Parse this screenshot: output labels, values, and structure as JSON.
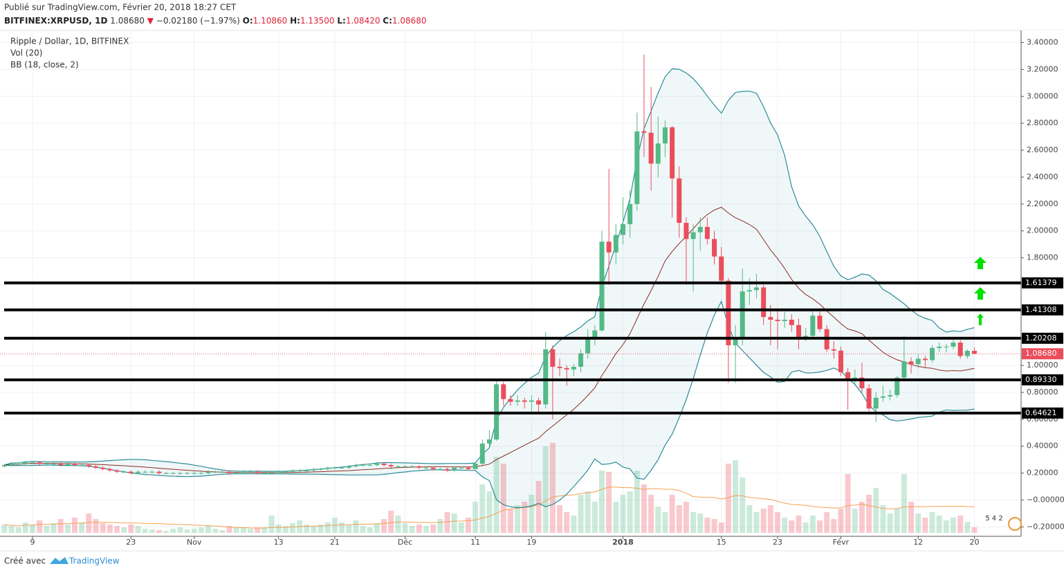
{
  "header": {
    "published": "Publié sur TradingView.com, Février 20, 2018 18:27 CET",
    "symbol": "BITFINEX:XRPUSD, 1D",
    "last": "1.08680",
    "arrow": "▼",
    "change": "−0.02180 (−1.97%)",
    "ohlc": [
      {
        "key": "O:",
        "value": "1.10860"
      },
      {
        "key": "H:",
        "value": "1.13500"
      },
      {
        "key": "L:",
        "value": "1.08420"
      },
      {
        "key": "C:",
        "value": "1.08680"
      }
    ],
    "badge": "5 4 2"
  },
  "footer": {
    "created": "Créé avec",
    "brand": "TradingView"
  },
  "chart_data": {
    "type": "candlestick",
    "legend": [
      "Ripple / Dollar, 1D, BITFINEX",
      "Vol (20)",
      "BB (18, close, 2)"
    ],
    "up_color": "#53b987",
    "down_color": "#eb4d5c",
    "band_color": "#2a8b97",
    "basis_color": "#8b2a22",
    "volume_ma_color": "#f5a050",
    "level_color": "#000000",
    "bb_length": 18,
    "bb_mult": 2,
    "volume_ma_length": 20,
    "x": [
      "2017-10-05",
      "2017-10-06",
      "2017-10-07",
      "2017-10-08",
      "2017-10-09",
      "2017-10-10",
      "2017-10-11",
      "2017-10-12",
      "2017-10-13",
      "2017-10-14",
      "2017-10-15",
      "2017-10-16",
      "2017-10-17",
      "2017-10-18",
      "2017-10-19",
      "2017-10-20",
      "2017-10-21",
      "2017-10-22",
      "2017-10-23",
      "2017-10-24",
      "2017-10-25",
      "2017-10-26",
      "2017-10-27",
      "2017-10-28",
      "2017-10-29",
      "2017-10-30",
      "2017-10-31",
      "2017-11-01",
      "2017-11-02",
      "2017-11-03",
      "2017-11-04",
      "2017-11-05",
      "2017-11-06",
      "2017-11-07",
      "2017-11-08",
      "2017-11-09",
      "2017-11-10",
      "2017-11-11",
      "2017-11-12",
      "2017-11-13",
      "2017-11-14",
      "2017-11-15",
      "2017-11-16",
      "2017-11-17",
      "2017-11-18",
      "2017-11-19",
      "2017-11-20",
      "2017-11-21",
      "2017-11-22",
      "2017-11-23",
      "2017-11-24",
      "2017-11-25",
      "2017-11-26",
      "2017-11-27",
      "2017-11-28",
      "2017-11-29",
      "2017-11-30",
      "2017-12-01",
      "2017-12-02",
      "2017-12-03",
      "2017-12-04",
      "2017-12-05",
      "2017-12-06",
      "2017-12-07",
      "2017-12-08",
      "2017-12-09",
      "2017-12-10",
      "2017-12-11",
      "2017-12-12",
      "2017-12-13",
      "2017-12-14",
      "2017-12-15",
      "2017-12-16",
      "2017-12-17",
      "2017-12-18",
      "2017-12-19",
      "2017-12-20",
      "2017-12-21",
      "2017-12-22",
      "2017-12-23",
      "2017-12-24",
      "2017-12-25",
      "2017-12-26",
      "2017-12-27",
      "2017-12-28",
      "2017-12-29",
      "2017-12-30",
      "2017-12-31",
      "2018-01-01",
      "2018-01-02",
      "2018-01-03",
      "2018-01-04",
      "2018-01-05",
      "2018-01-06",
      "2018-01-07",
      "2018-01-08",
      "2018-01-09",
      "2018-01-10",
      "2018-01-11",
      "2018-01-12",
      "2018-01-13",
      "2018-01-14",
      "2018-01-15",
      "2018-01-16",
      "2018-01-17",
      "2018-01-18",
      "2018-01-19",
      "2018-01-20",
      "2018-01-21",
      "2018-01-22",
      "2018-01-23",
      "2018-01-24",
      "2018-01-25",
      "2018-01-26",
      "2018-01-27",
      "2018-01-28",
      "2018-01-29",
      "2018-01-30",
      "2018-01-31",
      "2018-02-01",
      "2018-02-02",
      "2018-02-03",
      "2018-02-04",
      "2018-02-05",
      "2018-02-06",
      "2018-02-07",
      "2018-02-08",
      "2018-02-09",
      "2018-02-10",
      "2018-02-11",
      "2018-02-12",
      "2018-02-13",
      "2018-02-14",
      "2018-02-15",
      "2018-02-16",
      "2018-02-17",
      "2018-02-18",
      "2018-02-19",
      "2018-02-20"
    ],
    "open": [
      0.25,
      0.26,
      0.27,
      0.27,
      0.28,
      0.28,
      0.27,
      0.27,
      0.27,
      0.26,
      0.27,
      0.26,
      0.26,
      0.25,
      0.24,
      0.23,
      0.22,
      0.21,
      0.21,
      0.2,
      0.21,
      0.21,
      0.21,
      0.2,
      0.2,
      0.2,
      0.2,
      0.2,
      0.2,
      0.2,
      0.21,
      0.21,
      0.21,
      0.2,
      0.2,
      0.21,
      0.21,
      0.2,
      0.2,
      0.2,
      0.21,
      0.21,
      0.22,
      0.22,
      0.22,
      0.23,
      0.23,
      0.24,
      0.24,
      0.24,
      0.25,
      0.26,
      0.26,
      0.26,
      0.27,
      0.26,
      0.25,
      0.25,
      0.25,
      0.25,
      0.24,
      0.24,
      0.23,
      0.23,
      0.22,
      0.24,
      0.24,
      0.23,
      0.27,
      0.42,
      0.45,
      0.86,
      0.75,
      0.73,
      0.74,
      0.73,
      0.74,
      0.71,
      1.12,
      0.99,
      0.98,
      0.97,
      0.99,
      1.09,
      1.21,
      1.26,
      1.92,
      1.84,
      1.97,
      2.05,
      2.2,
      2.74,
      2.73,
      2.5,
      2.65,
      2.77,
      2.39,
      2.06,
      1.94,
      1.99,
      2.03,
      1.94,
      1.81,
      1.63,
      1.15,
      1.21,
      1.55,
      1.56,
      1.58,
      1.36,
      1.34,
      1.33,
      1.34,
      1.3,
      1.21,
      1.22,
      1.37,
      1.27,
      1.12,
      1.11,
      0.95,
      0.9,
      0.91,
      0.83,
      0.68,
      0.76,
      0.77,
      0.78,
      0.91,
      1.03,
      1.01,
      1.05,
      1.04,
      1.13,
      1.14,
      1.14,
      1.17,
      1.07,
      1.1086
    ],
    "high": [
      0.27,
      0.28,
      0.28,
      0.29,
      0.29,
      0.29,
      0.28,
      0.28,
      0.28,
      0.28,
      0.28,
      0.27,
      0.27,
      0.26,
      0.25,
      0.24,
      0.23,
      0.22,
      0.22,
      0.22,
      0.22,
      0.22,
      0.22,
      0.21,
      0.21,
      0.21,
      0.21,
      0.21,
      0.21,
      0.22,
      0.22,
      0.22,
      0.22,
      0.21,
      0.22,
      0.22,
      0.22,
      0.21,
      0.21,
      0.22,
      0.22,
      0.23,
      0.23,
      0.23,
      0.24,
      0.24,
      0.25,
      0.25,
      0.25,
      0.26,
      0.27,
      0.27,
      0.27,
      0.28,
      0.28,
      0.27,
      0.26,
      0.26,
      0.26,
      0.26,
      0.25,
      0.25,
      0.24,
      0.24,
      0.25,
      0.25,
      0.25,
      0.28,
      0.45,
      0.52,
      0.9,
      0.88,
      0.78,
      0.78,
      0.76,
      0.78,
      0.76,
      1.25,
      1.15,
      1.05,
      1.0,
      1.01,
      1.12,
      1.27,
      1.3,
      2.0,
      2.46,
      2.05,
      2.25,
      2.3,
      2.88,
      3.31,
      3.07,
      2.85,
      2.82,
      2.78,
      2.48,
      2.1,
      2.05,
      2.1,
      2.1,
      2.0,
      1.88,
      1.65,
      1.3,
      1.72,
      1.65,
      1.68,
      1.6,
      1.45,
      1.42,
      1.4,
      1.38,
      1.35,
      1.28,
      1.42,
      1.4,
      1.3,
      1.18,
      1.14,
      0.98,
      0.97,
      1.02,
      0.86,
      0.8,
      0.85,
      0.82,
      0.92,
      1.22,
      1.06,
      1.08,
      1.07,
      1.15,
      1.17,
      1.16,
      1.19,
      1.19,
      1.12,
      1.135
    ],
    "low": [
      0.24,
      0.25,
      0.26,
      0.26,
      0.27,
      0.26,
      0.26,
      0.25,
      0.25,
      0.25,
      0.25,
      0.25,
      0.24,
      0.23,
      0.22,
      0.21,
      0.2,
      0.2,
      0.19,
      0.19,
      0.2,
      0.2,
      0.19,
      0.19,
      0.19,
      0.19,
      0.19,
      0.19,
      0.19,
      0.19,
      0.2,
      0.2,
      0.19,
      0.19,
      0.19,
      0.2,
      0.19,
      0.19,
      0.19,
      0.19,
      0.2,
      0.2,
      0.21,
      0.21,
      0.21,
      0.22,
      0.22,
      0.23,
      0.23,
      0.23,
      0.24,
      0.25,
      0.25,
      0.25,
      0.25,
      0.23,
      0.24,
      0.24,
      0.24,
      0.23,
      0.23,
      0.22,
      0.22,
      0.21,
      0.21,
      0.23,
      0.22,
      0.23,
      0.26,
      0.4,
      0.44,
      0.7,
      0.7,
      0.7,
      0.68,
      0.66,
      0.65,
      0.68,
      0.6,
      0.92,
      0.85,
      0.92,
      0.95,
      1.05,
      1.15,
      1.25,
      1.6,
      1.75,
      1.9,
      1.95,
      2.15,
      2.55,
      2.3,
      2.4,
      2.55,
      2.1,
      1.95,
      1.6,
      1.55,
      1.85,
      1.9,
      1.75,
      1.6,
      0.87,
      0.87,
      1.15,
      1.45,
      1.5,
      1.3,
      1.15,
      1.12,
      1.28,
      1.25,
      1.12,
      1.18,
      1.2,
      1.25,
      1.1,
      1.05,
      0.92,
      0.67,
      0.85,
      0.8,
      0.66,
      0.58,
      0.73,
      0.74,
      0.76,
      0.88,
      0.94,
      0.98,
      0.98,
      1.02,
      1.1,
      1.1,
      1.12,
      1.05,
      1.05,
      1.0842
    ],
    "close": [
      0.26,
      0.27,
      0.27,
      0.28,
      0.28,
      0.27,
      0.27,
      0.27,
      0.26,
      0.27,
      0.26,
      0.26,
      0.25,
      0.24,
      0.23,
      0.22,
      0.21,
      0.21,
      0.2,
      0.21,
      0.21,
      0.21,
      0.2,
      0.2,
      0.2,
      0.2,
      0.2,
      0.2,
      0.2,
      0.21,
      0.21,
      0.21,
      0.2,
      0.2,
      0.21,
      0.21,
      0.2,
      0.2,
      0.2,
      0.21,
      0.21,
      0.22,
      0.22,
      0.22,
      0.23,
      0.23,
      0.24,
      0.24,
      0.24,
      0.25,
      0.26,
      0.26,
      0.26,
      0.27,
      0.26,
      0.25,
      0.25,
      0.25,
      0.25,
      0.24,
      0.24,
      0.23,
      0.23,
      0.22,
      0.24,
      0.24,
      0.23,
      0.27,
      0.42,
      0.45,
      0.86,
      0.75,
      0.73,
      0.74,
      0.73,
      0.74,
      0.71,
      1.12,
      0.99,
      0.98,
      0.97,
      0.99,
      1.09,
      1.21,
      1.26,
      1.92,
      1.84,
      1.97,
      2.05,
      2.2,
      2.74,
      2.73,
      2.5,
      2.65,
      2.77,
      2.39,
      2.06,
      1.94,
      1.99,
      2.03,
      1.94,
      1.81,
      1.63,
      1.15,
      1.21,
      1.55,
      1.56,
      1.58,
      1.36,
      1.34,
      1.33,
      1.34,
      1.3,
      1.21,
      1.22,
      1.37,
      1.27,
      1.12,
      1.11,
      0.95,
      0.9,
      0.91,
      0.83,
      0.68,
      0.76,
      0.77,
      0.78,
      0.91,
      1.03,
      1.01,
      1.05,
      1.04,
      1.13,
      1.14,
      1.14,
      1.17,
      1.07,
      1.1086,
      1.0868
    ],
    "volume": [
      12,
      10,
      8,
      15,
      12,
      18,
      10,
      14,
      20,
      12,
      22,
      15,
      28,
      20,
      14,
      12,
      10,
      8,
      12,
      10,
      6,
      5,
      4,
      3,
      6,
      8,
      5,
      6,
      8,
      10,
      6,
      4,
      10,
      8,
      8,
      6,
      8,
      8,
      25,
      12,
      10,
      14,
      18,
      12,
      10,
      12,
      15,
      22,
      15,
      12,
      18,
      10,
      8,
      14,
      20,
      32,
      25,
      14,
      10,
      12,
      10,
      12,
      20,
      30,
      28,
      15,
      22,
      45,
      70,
      60,
      110,
      100,
      35,
      40,
      45,
      55,
      75,
      125,
      130,
      40,
      30,
      25,
      55,
      60,
      45,
      90,
      88,
      45,
      55,
      60,
      90,
      70,
      55,
      38,
      30,
      55,
      40,
      45,
      30,
      28,
      22,
      20,
      15,
      100,
      105,
      80,
      40,
      30,
      35,
      40,
      30,
      22,
      18,
      25,
      15,
      25,
      18,
      30,
      20,
      35,
      85,
      35,
      45,
      55,
      65,
      40,
      28,
      35,
      85,
      45,
      28,
      22,
      30,
      25,
      18,
      22,
      25,
      16,
      8
    ],
    "ylim": [
      -0.27,
      3.49
    ],
    "yticks": [
      {
        "value": 3.4,
        "label": "3.40000"
      },
      {
        "value": 3.2,
        "label": "3.20000"
      },
      {
        "value": 3.0,
        "label": "3.00000"
      },
      {
        "value": 2.8,
        "label": "2.80000"
      },
      {
        "value": 2.6,
        "label": "2.60000"
      },
      {
        "value": 2.4,
        "label": "2.40000"
      },
      {
        "value": 2.2,
        "label": "2.20000"
      },
      {
        "value": 2.0,
        "label": "2.00000"
      },
      {
        "value": 1.8,
        "label": "1.80000"
      },
      {
        "value": 1.6,
        "label": "1.60000"
      },
      {
        "value": 1.4,
        "label": "1.40000"
      },
      {
        "value": 1.2,
        "label": "1.20000"
      },
      {
        "value": 1.0,
        "label": "1.00000"
      },
      {
        "value": 0.8,
        "label": "0.80000"
      },
      {
        "value": 0.6,
        "label": "0.60000"
      },
      {
        "value": 0.4,
        "label": "0.40000"
      },
      {
        "value": 0.2,
        "label": "0.20000"
      },
      {
        "value": 0,
        "label": "−0.00000"
      },
      {
        "value": -0.2,
        "label": "−0.20000"
      }
    ],
    "xticks": [
      {
        "value": "2017-10-09",
        "label": "9"
      },
      {
        "value": "2017-10-23",
        "label": "23"
      },
      {
        "value": "2017-11-01",
        "label": "Nov"
      },
      {
        "value": "2017-11-13",
        "label": "13"
      },
      {
        "value": "2017-11-21",
        "label": "21"
      },
      {
        "value": "2017-12-01",
        "label": "Déc"
      },
      {
        "value": "2017-12-11",
        "label": "11"
      },
      {
        "value": "2017-12-19",
        "label": "19"
      },
      {
        "value": "2018-01-01",
        "label": "2018"
      },
      {
        "value": "2018-01-15",
        "label": "15"
      },
      {
        "value": "2018-01-23",
        "label": "23"
      },
      {
        "value": "2018-02-01",
        "label": "Févr"
      },
      {
        "value": "2018-02-12",
        "label": "12"
      },
      {
        "value": "2018-02-20",
        "label": "20"
      }
    ],
    "levels": [
      1.61379,
      1.41308,
      1.20208,
      {
        "value": 0.8933,
        "label": "0.89330"
      },
      0.64621
    ],
    "last_price": {
      "value": 1.0868,
      "label": "1.08680"
    },
    "grid": true
  }
}
